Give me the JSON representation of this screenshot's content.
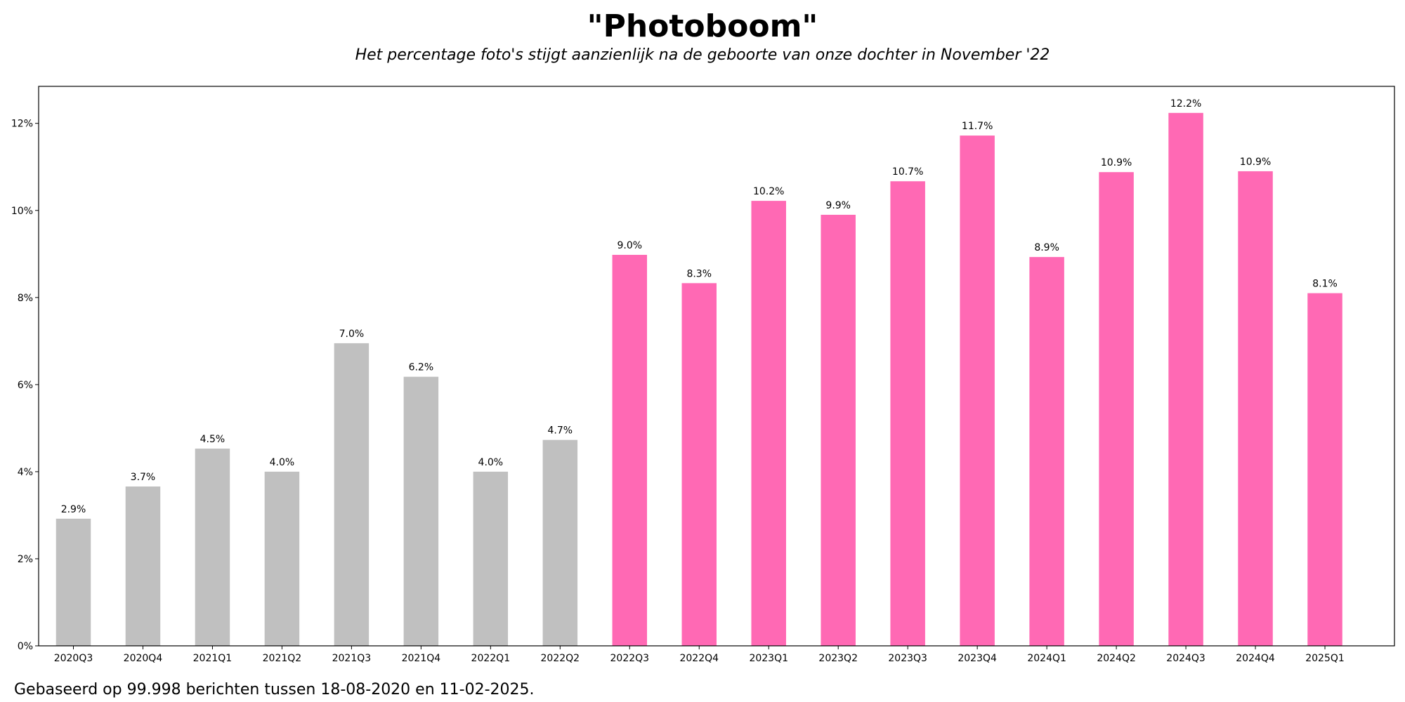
{
  "chart_data": {
    "type": "bar",
    "title": "\"Photoboom\"",
    "subtitle": "Het percentage foto's stijgt aanzienlijk na de geboorte van onze dochter in November '22",
    "footnote": "Gebaseerd op 99.998 berichten tussen 18-08-2020 en 11-02-2025.",
    "xlabel": "",
    "ylabel": "",
    "ylim": [
      0,
      12.85
    ],
    "yticks": [
      0,
      2,
      4,
      6,
      8,
      10,
      12
    ],
    "ytick_labels": [
      "0%",
      "2%",
      "4%",
      "6%",
      "8%",
      "10%",
      "12%"
    ],
    "grid": false,
    "categories": [
      "2020Q3",
      "2020Q4",
      "2021Q1",
      "2021Q2",
      "2021Q3",
      "2021Q4",
      "2022Q1",
      "2022Q2",
      "2022Q3",
      "2022Q4",
      "2023Q1",
      "2023Q2",
      "2023Q3",
      "2023Q4",
      "2024Q1",
      "2024Q2",
      "2024Q3",
      "2024Q4",
      "2025Q1"
    ],
    "values": [
      2.92,
      3.66,
      4.53,
      4.0,
      6.95,
      6.18,
      4.0,
      4.73,
      8.98,
      8.33,
      10.22,
      9.9,
      10.67,
      11.72,
      8.93,
      10.88,
      12.24,
      10.9,
      8.1
    ],
    "value_labels": [
      "2.9%",
      "3.7%",
      "4.5%",
      "4.0%",
      "7.0%",
      "6.2%",
      "4.0%",
      "4.7%",
      "9.0%",
      "8.3%",
      "10.2%",
      "9.9%",
      "10.7%",
      "11.7%",
      "8.9%",
      "10.9%",
      "12.2%",
      "10.9%",
      "8.1%"
    ],
    "colors": [
      "#c0c0c0",
      "#c0c0c0",
      "#c0c0c0",
      "#c0c0c0",
      "#c0c0c0",
      "#c0c0c0",
      "#c0c0c0",
      "#c0c0c0",
      "#ff69b4",
      "#ff69b4",
      "#ff69b4",
      "#ff69b4",
      "#ff69b4",
      "#ff69b4",
      "#ff69b4",
      "#ff69b4",
      "#ff69b4",
      "#ff69b4",
      "#ff69b4"
    ]
  }
}
